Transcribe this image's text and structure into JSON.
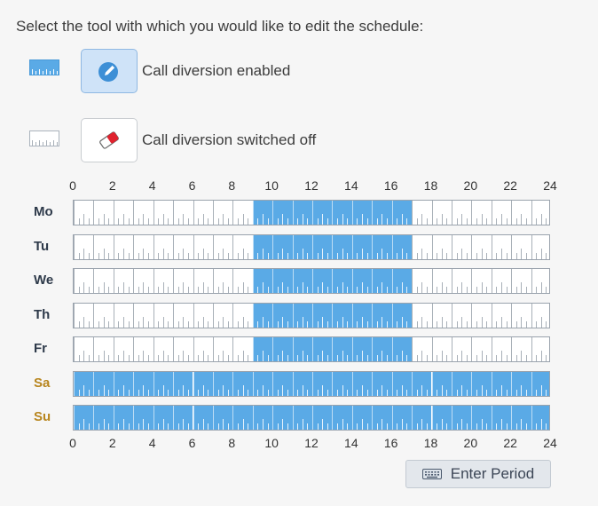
{
  "instruction": "Select the tool with which you would like to edit the schedule:",
  "tools": [
    {
      "label": "Call diversion enabled",
      "icon": "pencil-icon",
      "selected": true
    },
    {
      "label": "Call diversion switched off",
      "icon": "eraser-icon",
      "selected": false
    }
  ],
  "hour_labels": [
    "0",
    "2",
    "4",
    "6",
    "8",
    "10",
    "12",
    "14",
    "16",
    "18",
    "20",
    "22",
    "24"
  ],
  "days": [
    {
      "label": "Mo",
      "weekend": false,
      "active_hours": [
        9,
        17
      ]
    },
    {
      "label": "Tu",
      "weekend": false,
      "active_hours": [
        9,
        17
      ]
    },
    {
      "label": "We",
      "weekend": false,
      "active_hours": [
        9,
        17
      ]
    },
    {
      "label": "Th",
      "weekend": false,
      "active_hours": [
        9,
        17
      ]
    },
    {
      "label": "Fr",
      "weekend": false,
      "active_hours": [
        9,
        17
      ]
    },
    {
      "label": "Sa",
      "weekend": true,
      "active_hours": [
        0,
        24
      ]
    },
    {
      "label": "Su",
      "weekend": true,
      "active_hours": [
        0,
        24
      ]
    }
  ],
  "enter_period_label": "Enter Period",
  "colors": {
    "active": "#5aaae6",
    "weekday_label": "#2e3a4a",
    "weekend_label": "#b8861f"
  }
}
